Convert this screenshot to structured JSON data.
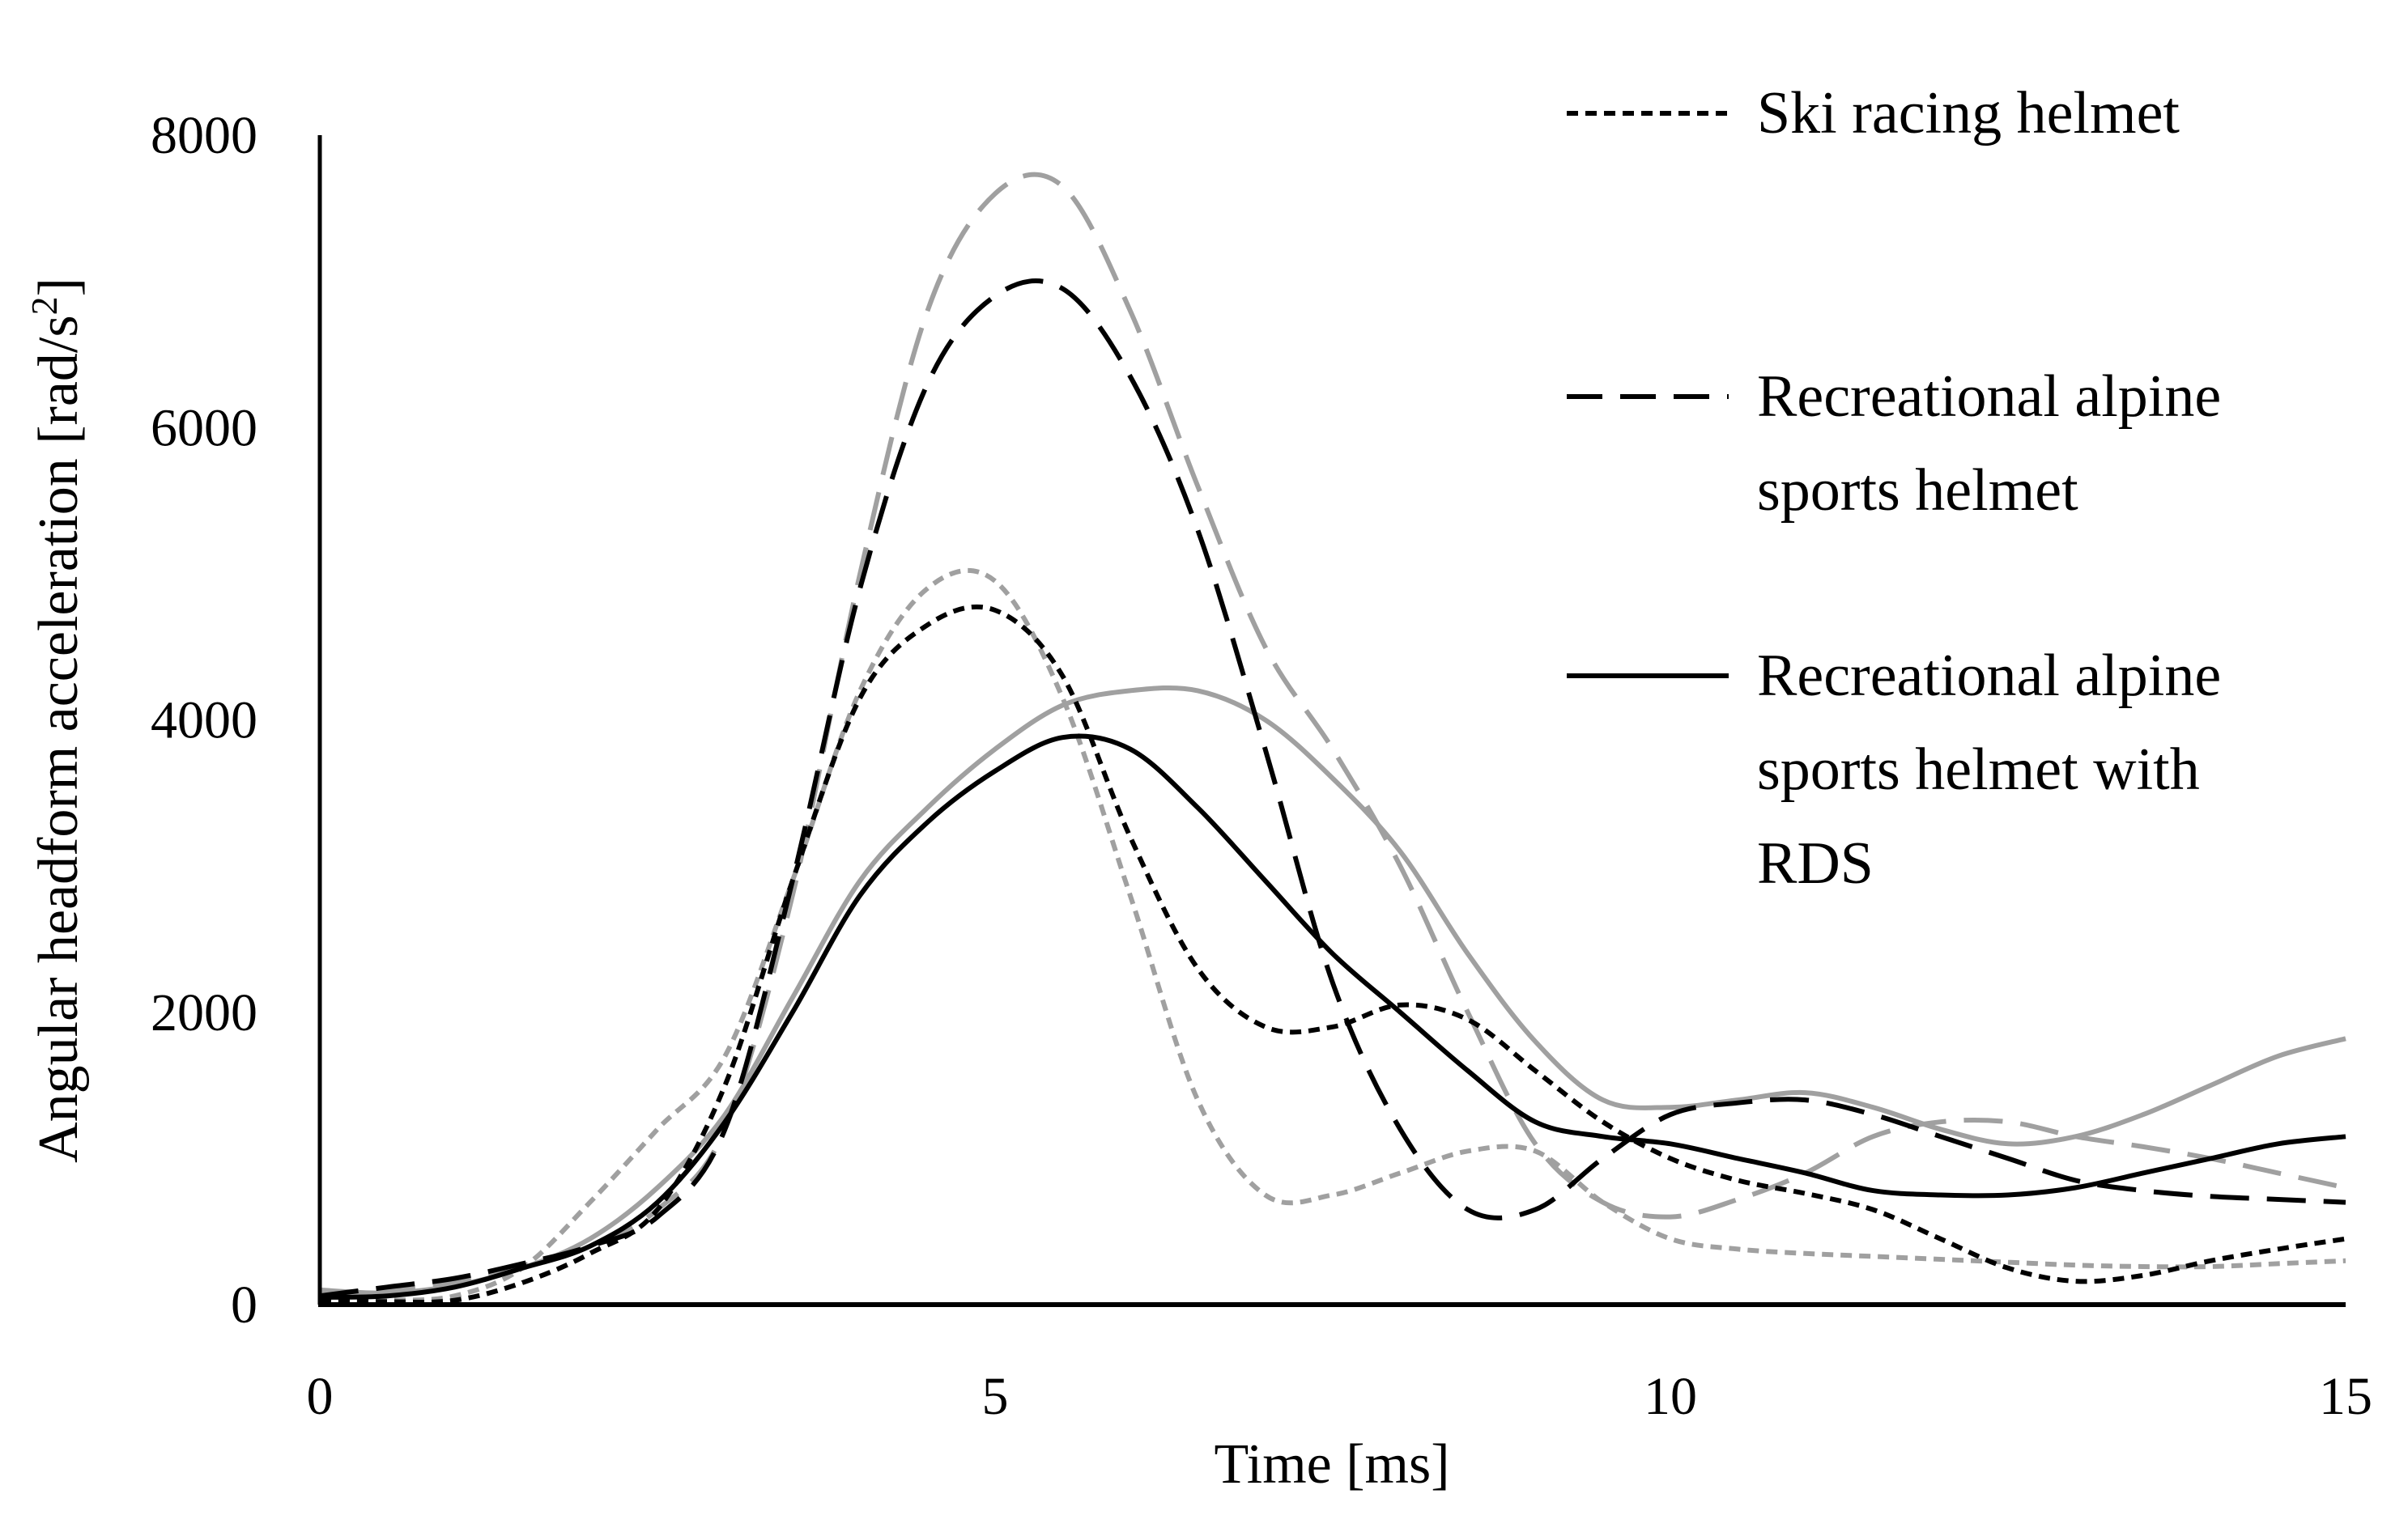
{
  "chart_data": {
    "type": "line",
    "title": "",
    "xlabel": "Time [ms]",
    "ylabel": "Angular headform acceleration [rad/s",
    "ylabel_sup": "2",
    "ylabel_end": "]",
    "xlim": [
      0,
      15
    ],
    "ylim": [
      0,
      8000
    ],
    "xticks": [
      0,
      5,
      10,
      15
    ],
    "yticks": [
      0,
      2000,
      4000,
      6000,
      8000
    ],
    "x": [
      0,
      0.5,
      1,
      1.5,
      2,
      2.5,
      3,
      3.5,
      4,
      4.5,
      5,
      5.5,
      6,
      6.5,
      7,
      7.5,
      8,
      8.5,
      9,
      9.5,
      10,
      10.5,
      11,
      11.5,
      12,
      12.5,
      13,
      13.5,
      14,
      14.5,
      15
    ],
    "legend": [
      {
        "label": [
          "Ski racing helmet"
        ],
        "style": "dotted"
      },
      {
        "label": [
          "Recreational alpine",
          "sports helmet"
        ],
        "style": "dashed"
      },
      {
        "label": [
          "Recreational alpine",
          "sports helmet with",
          "RDS"
        ],
        "style": "solid"
      }
    ],
    "series": [
      {
        "name": "Ski racing helmet (black)",
        "style": "dotted",
        "color": "#000000",
        "values": [
          30,
          20,
          30,
          150,
          350,
          650,
          1500,
          2900,
          4150,
          4650,
          4750,
          4300,
          3200,
          2300,
          1900,
          1900,
          2050,
          1950,
          1600,
          1250,
          1000,
          850,
          760,
          650,
          450,
          250,
          160,
          200,
          300,
          380,
          450
        ]
      },
      {
        "name": "Ski racing helmet (grey)",
        "style": "dotted",
        "color": "#a0a0a0",
        "values": [
          40,
          30,
          60,
          250,
          700,
          1200,
          1700,
          2900,
          4200,
          4900,
          4950,
          4150,
          2800,
          1400,
          750,
          750,
          900,
          1050,
          1050,
          700,
          450,
          380,
          350,
          330,
          310,
          290,
          270,
          260,
          260,
          280,
          300
        ]
      },
      {
        "name": "Recreational alpine sports helmet (black)",
        "style": "dashed",
        "color": "#000000",
        "values": [
          60,
          120,
          180,
          280,
          400,
          600,
          1200,
          2900,
          4900,
          6300,
          6900,
          6950,
          6350,
          5300,
          3800,
          2200,
          1200,
          650,
          650,
          1000,
          1300,
          1380,
          1400,
          1300,
          1150,
          1000,
          850,
          780,
          740,
          720,
          700
        ]
      },
      {
        "name": "Recreational alpine sports helmet (grey)",
        "style": "dashed",
        "color": "#a0a0a0",
        "values": [
          80,
          100,
          150,
          250,
          400,
          650,
          1200,
          2800,
          5000,
          6800,
          7600,
          7650,
          6800,
          5600,
          4500,
          3800,
          3000,
          2000,
          1100,
          700,
          600,
          720,
          900,
          1150,
          1250,
          1250,
          1150,
          1080,
          1000,
          900,
          800
        ]
      },
      {
        "name": "Recreational alpine sports helmet with RDS (black)",
        "style": "solid",
        "color": "#000000",
        "values": [
          50,
          60,
          120,
          250,
          400,
          700,
          1250,
          2000,
          2800,
          3300,
          3650,
          3880,
          3800,
          3400,
          2900,
          2400,
          2000,
          1600,
          1250,
          1150,
          1100,
          1000,
          900,
          780,
          750,
          750,
          800,
          900,
          1000,
          1100,
          1150
        ]
      },
      {
        "name": "Recreational alpine sports helmet with RDS (grey)",
        "style": "solid",
        "color": "#a0a0a0",
        "values": [
          100,
          80,
          130,
          250,
          450,
          800,
          1300,
          2100,
          2900,
          3400,
          3800,
          4100,
          4200,
          4200,
          4000,
          3600,
          3100,
          2400,
          1800,
          1400,
          1350,
          1400,
          1450,
          1350,
          1200,
          1100,
          1150,
          1300,
          1500,
          1700,
          1820
        ]
      }
    ]
  }
}
